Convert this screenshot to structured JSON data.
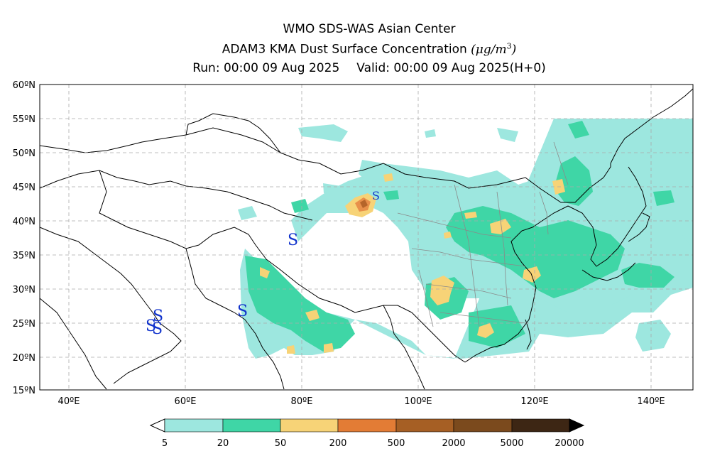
{
  "header": {
    "line1": "WMO SDS-WAS Asian Center",
    "line2_prefix": "ADAM3 KMA Dust Surface Concentration ",
    "unit_base": "(μg/m",
    "unit_exp": "3",
    "unit_close": ")",
    "line3_run": "Run: 00:00 09 Aug 2025",
    "line3_valid": "Valid: 00:00 09 Aug 2025(H+0)"
  },
  "map": {
    "lat_labels": [
      "60ºN",
      "55ºN",
      "50ºN",
      "45ºN",
      "40ºN",
      "35ºN",
      "30ºN",
      "25ºN",
      "20ºN",
      "15ºN"
    ],
    "lon_labels": [
      "40ºE",
      "60ºE",
      "80ºE",
      "100ºE",
      "120ºE",
      "140ºE"
    ],
    "storm_symbol": "S",
    "colors": {
      "level1": "#9de7df",
      "level2": "#3fd6a6",
      "level3": "#f7d377",
      "level4": "#e8904a",
      "level5": "#c56a2c",
      "boundary": "#000000",
      "province": "#888888",
      "storm": "#1133cc"
    }
  },
  "colorbar": {
    "labels": [
      "5",
      "20",
      "50",
      "200",
      "500",
      "2000",
      "5000",
      "20000"
    ],
    "colors": [
      "#9de7df",
      "#3fd6a6",
      "#f7d377",
      "#e37c35",
      "#a65f24",
      "#7b4a1d",
      "#3d2614"
    ]
  }
}
